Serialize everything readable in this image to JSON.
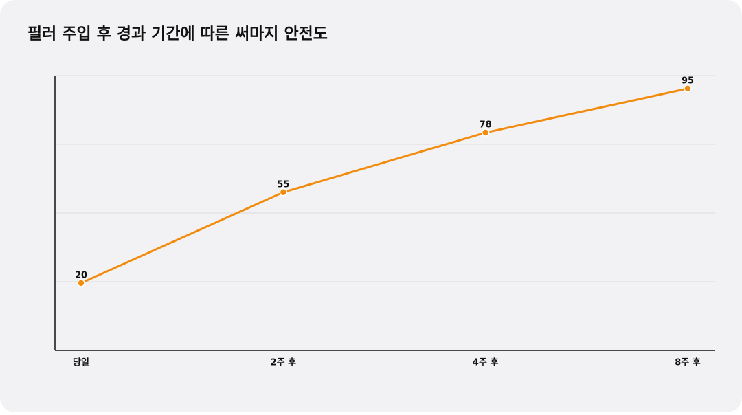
{
  "chart_data": {
    "type": "line",
    "title": "필러 주입 후 경과 기간에 따른 써마지 안전도",
    "categories": [
      "당일",
      "2주 후",
      "4주 후",
      "8주 후"
    ],
    "series": [
      {
        "color": "#f28c0f",
        "values": [
          20,
          55,
          78,
          95
        ]
      }
    ],
    "ylim": [
      -6,
      100
    ],
    "grid": true
  }
}
